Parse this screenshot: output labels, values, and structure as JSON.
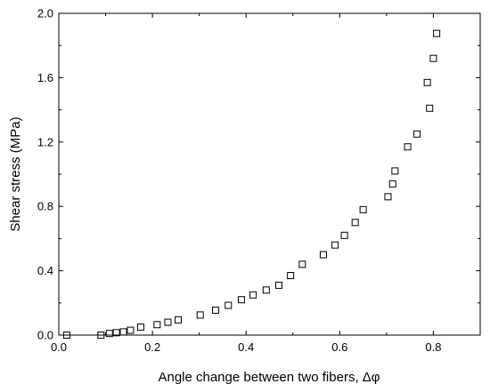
{
  "chart_data": {
    "type": "scatter",
    "xlabel": "Angle change between two fibers, Δφ",
    "ylabel": "Shear stress (MPa)",
    "xlim": [
      0,
      0.9
    ],
    "ylim": [
      0,
      2.0
    ],
    "x_ticks": [
      "0.0",
      "0.2",
      "0.4",
      "0.6",
      "0.8"
    ],
    "x_tick_values": [
      0.0,
      0.2,
      0.4,
      0.6,
      0.8
    ],
    "y_ticks": [
      "0.0",
      "0.4",
      "0.8",
      "1.2",
      "1.6",
      "2.0"
    ],
    "y_tick_values": [
      0.0,
      0.4,
      0.8,
      1.2,
      1.6,
      2.0
    ],
    "grid": false,
    "marker": "open-square",
    "series": [
      {
        "x": [
          0.017,
          0.09,
          0.108,
          0.123,
          0.138,
          0.153,
          0.175,
          0.21,
          0.233,
          0.255,
          0.302,
          0.335,
          0.362,
          0.39,
          0.415,
          0.443,
          0.47,
          0.495,
          0.52,
          0.565,
          0.59,
          0.61,
          0.633,
          0.65,
          0.703,
          0.713,
          0.718,
          0.745,
          0.765,
          0.787,
          0.792,
          0.8,
          0.807
        ],
        "y": [
          0.0,
          0.0,
          0.01,
          0.015,
          0.02,
          0.03,
          0.05,
          0.065,
          0.08,
          0.095,
          0.125,
          0.155,
          0.185,
          0.22,
          0.25,
          0.28,
          0.31,
          0.37,
          0.44,
          0.5,
          0.56,
          0.62,
          0.7,
          0.78,
          0.86,
          0.94,
          1.02,
          1.17,
          1.25,
          1.57,
          1.41,
          1.72,
          1.875
        ]
      }
    ]
  }
}
